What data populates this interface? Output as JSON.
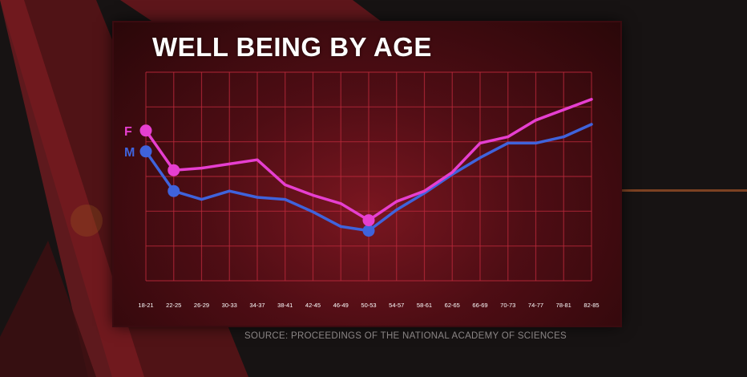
{
  "chart_data": {
    "type": "line",
    "title": "WELL BEING BY AGE",
    "xlabel": "",
    "ylabel": "",
    "categories": [
      "18-21",
      "22-25",
      "26-29",
      "30-33",
      "34-37",
      "38-41",
      "42-45",
      "46-49",
      "50-53",
      "54-57",
      "58-61",
      "62-65",
      "66-69",
      "70-73",
      "74-77",
      "78-81",
      "82-85"
    ],
    "ylim": [
      0,
      10
    ],
    "grid": true,
    "series": [
      {
        "name": "F",
        "color": "#e63fd0",
        "values": [
          7.2,
          5.3,
          5.4,
          5.6,
          5.8,
          4.6,
          4.1,
          3.7,
          2.9,
          3.8,
          4.3,
          5.2,
          6.6,
          6.9,
          7.7,
          8.2,
          8.7
        ]
      },
      {
        "name": "M",
        "color": "#3f63dc",
        "values": [
          6.2,
          4.3,
          3.9,
          4.3,
          4.0,
          3.9,
          3.3,
          2.6,
          2.4,
          3.4,
          4.2,
          5.1,
          5.9,
          6.6,
          6.6,
          6.9,
          7.5
        ]
      }
    ],
    "markers": {
      "F": [
        0,
        1,
        8
      ],
      "M": [
        0,
        1,
        8
      ]
    }
  },
  "source": "SOURCE: PROCEEDINGS OF THE NATIONAL ACADEMY OF SCIENCES"
}
